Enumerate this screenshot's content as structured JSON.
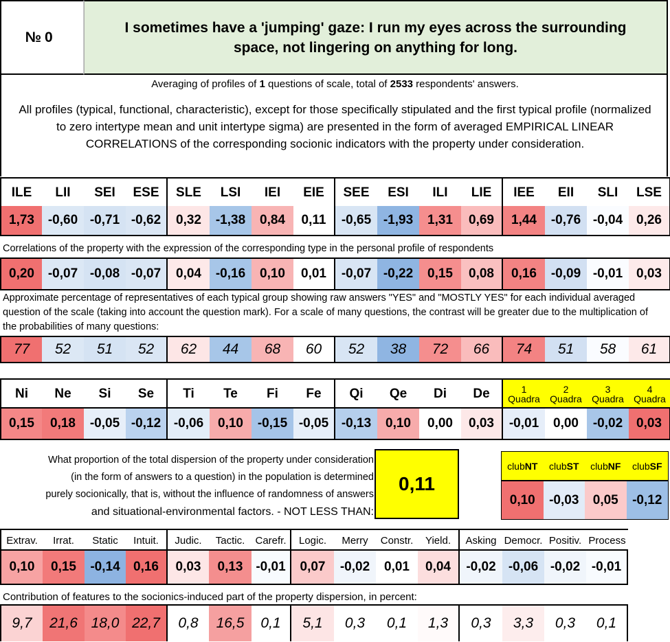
{
  "header": {
    "number_label": "№",
    "number_value": "0",
    "question": "I sometimes have a 'jumping' gaze: I run my eyes across the surrounding space, not lingering on anything for long."
  },
  "averaging": {
    "prefix": "Averaging of profiles of ",
    "questions": "1",
    "middle": " questions of scale, total of ",
    "respondents": "2533",
    "suffix": " respondents' answers."
  },
  "note": "All profiles (typical, functional, characteristic), except for those specifically stipulated and the first typical profile (normalized to zero intertype mean and unit intertype sigma) are presented in the form of averaged EMPIRICAL LINEAR CORRELATIONS of the corresponding socionic indicators with the property under consideration.",
  "types": [
    "ILE",
    "LII",
    "SEI",
    "ESE",
    "SLE",
    "LSI",
    "IEI",
    "EIE",
    "SEE",
    "ESI",
    "ILI",
    "LIE",
    "IEE",
    "EII",
    "SLI",
    "LSE"
  ],
  "type_profile": [
    "1,73",
    "-0,60",
    "-0,71",
    "-0,62",
    "0,32",
    "-1,38",
    "0,84",
    "0,11",
    "-0,65",
    "-1,93",
    "1,31",
    "0,69",
    "1,44",
    "-0,76",
    "-0,04",
    "0,26"
  ],
  "type_profile_colors": [
    "#f07070",
    "#dce8f5",
    "#d5e3f3",
    "#dae6f4",
    "#fde6e6",
    "#a7c6e8",
    "#f8b4b4",
    "#fff",
    "#d8e5f4",
    "#8fb5e2",
    "#f58e8e",
    "#fabcbc",
    "#f38383",
    "#d2e0f2",
    "#fafcff",
    "#fde9e9"
  ],
  "corr_caption": "Correlations of the property with the expression of the corresponding type in the personal profile of respondents",
  "type_corr": [
    "0,20",
    "-0,07",
    "-0,08",
    "-0,07",
    "0,04",
    "-0,16",
    "0,10",
    "0,01",
    "-0,07",
    "-0,22",
    "0,15",
    "0,08",
    "0,16",
    "-0,09",
    "-0,01",
    "0,03"
  ],
  "type_corr_colors": [
    "#f07070",
    "#dce8f5",
    "#d5e3f3",
    "#dae6f4",
    "#fde9e9",
    "#a7c6e8",
    "#f8b4b4",
    "#fff",
    "#d8e5f4",
    "#8fb5e2",
    "#f58e8e",
    "#fac0c0",
    "#f38383",
    "#d2e0f2",
    "#fafcff",
    "#fdeaea"
  ],
  "pct_caption": "Approximate percentage of representatives of each typical group showing raw answers \"YES\" and \"MOSTLY YES\" for each individual averaged question of the scale (taking into account the question mark). For a scale of many questions, the contrast will be greater due to the multiplication of the probabilities of many questions:",
  "type_pct": [
    "77",
    "52",
    "51",
    "52",
    "62",
    "44",
    "68",
    "60",
    "52",
    "38",
    "72",
    "66",
    "74",
    "51",
    "58",
    "61"
  ],
  "type_pct_colors": [
    "#f07070",
    "#dce8f5",
    "#d5e3f3",
    "#dae6f4",
    "#fde6e6",
    "#a7c6e8",
    "#f8b4b4",
    "#fff",
    "#d8e5f4",
    "#8fb5e2",
    "#f58e8e",
    "#fabcbc",
    "#f38383",
    "#d2e0f2",
    "#fafcff",
    "#fde9e9"
  ],
  "functions": [
    "Ni",
    "Ne",
    "Si",
    "Se",
    "Ti",
    "Te",
    "Fi",
    "Fe",
    "Qi",
    "Qe",
    "Di",
    "De"
  ],
  "function_corr": [
    "0,15",
    "0,18",
    "-0,05",
    "-0,12",
    "-0,06",
    "0,10",
    "-0,15",
    "-0,05",
    "-0,13",
    "0,10",
    "0,00",
    "0,03"
  ],
  "function_colors": [
    "#f48787",
    "#f27a7a",
    "#e7eff9",
    "#bad2ee",
    "#e3edf8",
    "#f7abab",
    "#a5c4e8",
    "#e7eff9",
    "#b5cfec",
    "#f7abab",
    "#fff",
    "#fde8e8"
  ],
  "quadras": [
    {
      "n": "1",
      "label": "Quadra"
    },
    {
      "n": "2",
      "label": "Quadra"
    },
    {
      "n": "3",
      "label": "Quadra"
    },
    {
      "n": "4",
      "label": "Quadra"
    }
  ],
  "quadra_corr": [
    "-0,01",
    "0,00",
    "-0,02",
    "0,03"
  ],
  "quadra_colors": [
    "#e6eef9",
    "#fff",
    "#a8c6e8",
    "#f07070"
  ],
  "dispersion_text": [
    "What proportion of the total dispersion of the property under consideration",
    "(in the form of answers to a question) in the population is determined",
    "purely socionically, that is, without the influence of randomness of answers",
    "and situational-environmental factors. - NOT LESS THAN:"
  ],
  "dispersion_value": "0,11",
  "clubs": [
    {
      "pre": "club",
      "b": "NT"
    },
    {
      "pre": "club",
      "b": "ST"
    },
    {
      "pre": "club",
      "b": "NF"
    },
    {
      "pre": "club",
      "b": "SF"
    }
  ],
  "club_corr": [
    "0,10",
    "-0,03",
    "0,05",
    "-0,12"
  ],
  "club_colors": [
    "#f07070",
    "#e2ecf8",
    "#fbcaca",
    "#9dbfe6"
  ],
  "features": [
    "Extrav.",
    "Irrat.",
    "Static",
    "Intuit.",
    "Judic.",
    "Tactic.",
    "Carefr.",
    "Logic.",
    "Merry",
    "Constr.",
    "Yield.",
    "Asking",
    "Democr.",
    "Positiv.",
    "Process"
  ],
  "feature_corr": [
    "0,10",
    "0,15",
    "-0,14",
    "0,16",
    "0,03",
    "0,13",
    "-0,01",
    "0,07",
    "-0,02",
    "0,01",
    "0,04",
    "-0,02",
    "-0,06",
    "-0,02",
    "-0,01"
  ],
  "feature_colors": [
    "#f7a3a3",
    "#f27a7a",
    "#8db3e1",
    "#f07070",
    "#fde6e6",
    "#f48e8e",
    "#f8fbfe",
    "#fbcaca",
    "#f0f5fb",
    "#fff",
    "#fcdede",
    "#f0f5fb",
    "#d6e4f4",
    "#f0f5fb",
    "#f8fbfe"
  ],
  "contrib_caption": "Contribution of features to the sociоnics-induced part of the property dispersion, in percent:",
  "feature_contrib": [
    "9,7",
    "21,6",
    "18,0",
    "22,7",
    "0,8",
    "16,5",
    "0,1",
    "5,1",
    "0,3",
    "0,1",
    "1,3",
    "0,3",
    "3,3",
    "0,3",
    "0,1"
  ],
  "contrib_colors": [
    "#fbd3d3",
    "#f07575",
    "#f48b8b",
    "#f07070",
    "#fff",
    "#f5a0a0",
    "#fff",
    "#fde5e5",
    "#fff",
    "#fff",
    "#fffafa",
    "#fff",
    "#fdeded",
    "#fff",
    "#fff"
  ]
}
